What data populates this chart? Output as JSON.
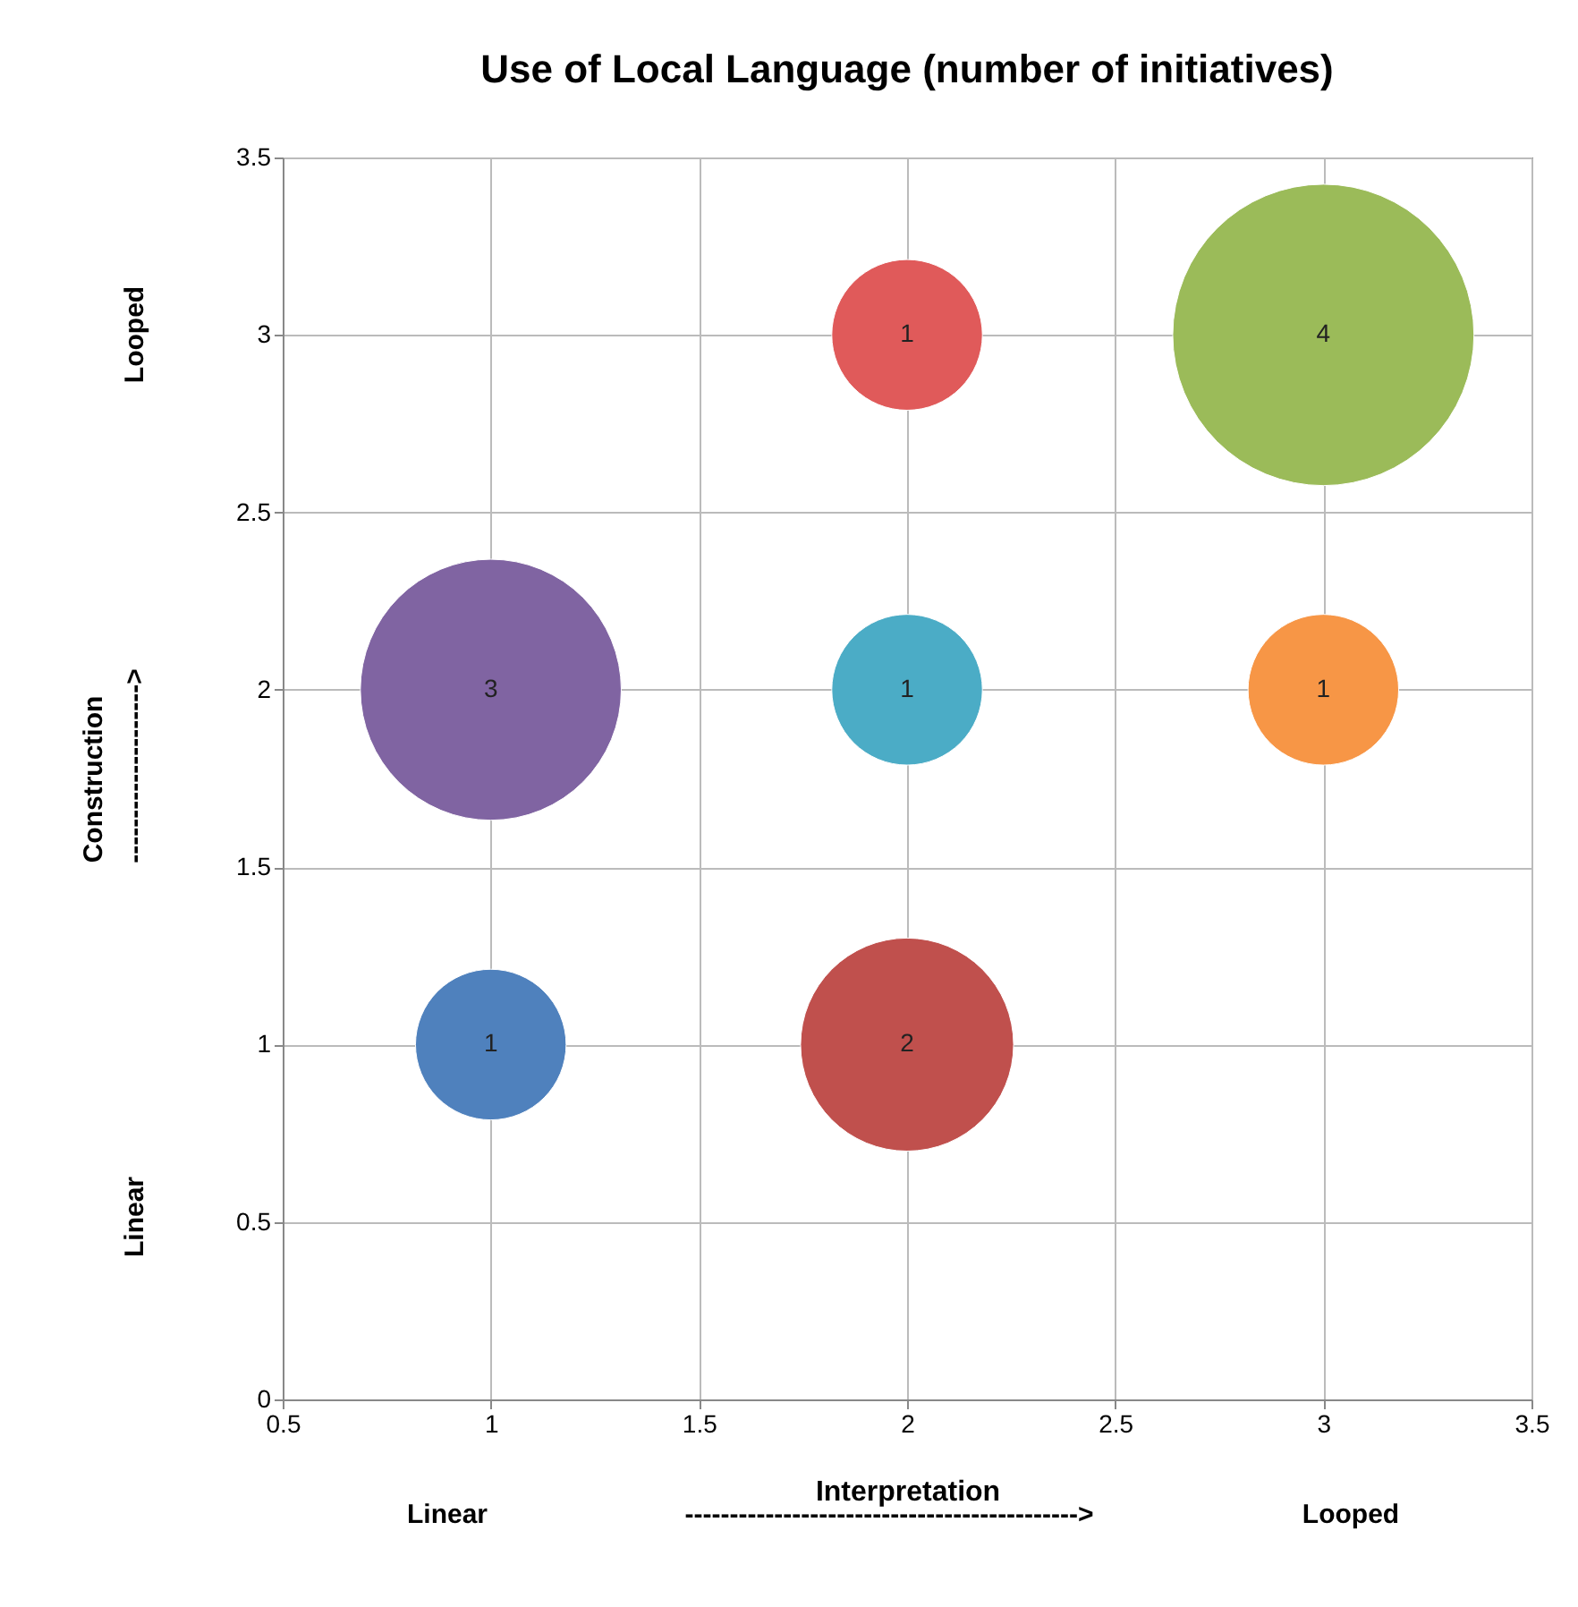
{
  "chart_data": {
    "type": "bubble",
    "title": "Use of Local Language (number of initiatives)",
    "xlabel": "Interpretation",
    "ylabel": "Construction",
    "annotations": [
      "Linear",
      "-------------------------------------------->",
      "Looped",
      "Linear",
      "-------------------->",
      "Looped"
    ],
    "x": [
      1,
      2,
      1,
      2,
      3,
      2,
      3
    ],
    "values": [
      1,
      1,
      2,
      2,
      2,
      3,
      3
    ],
    "sizes": [
      1,
      2,
      3,
      1,
      1,
      1,
      4
    ],
    "value_labels": [
      "1",
      "2",
      "3",
      "1",
      "1",
      "1",
      "4"
    ],
    "colors": [
      "#4f81bd",
      "#c0504d",
      "#8064a2",
      "#4bacc6",
      "#f79646",
      "#e05a5a",
      "#9bbb59"
    ],
    "xlim": [
      0.5,
      3.5
    ],
    "xticks": [
      0.5,
      1,
      1.5,
      2,
      2.5,
      3,
      3.5
    ],
    "ylim": [
      0,
      3.5
    ],
    "yticks": [
      0,
      0.5,
      1,
      1.5,
      2,
      2.5,
      3,
      3.5
    ],
    "grid": true,
    "legend": false
  }
}
